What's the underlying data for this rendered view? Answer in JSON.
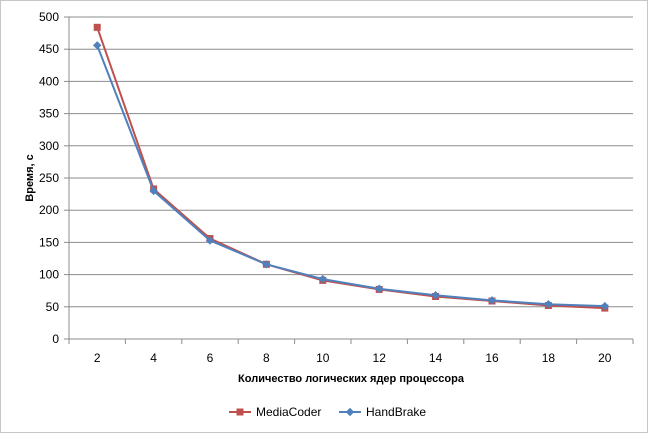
{
  "chart_data": {
    "type": "line",
    "xlabel": "Количество  логических ядер процессора",
    "ylabel": "Время,  с",
    "ylim": [
      0,
      500
    ],
    "ytick_step": 50,
    "grid": "horizontal",
    "legend_position": "bottom",
    "categories": [
      "2",
      "4",
      "6",
      "8",
      "10",
      "12",
      "14",
      "16",
      "18",
      "20"
    ],
    "series": [
      {
        "name": "MediaCoder",
        "color": "#c0504d",
        "marker": "square",
        "values": [
          484,
          233,
          156,
          116,
          91,
          77,
          66,
          59,
          52,
          48
        ]
      },
      {
        "name": "HandBrake",
        "color": "#4f81bd",
        "marker": "diamond",
        "values": [
          456,
          230,
          153,
          116,
          93,
          78,
          68,
          60,
          54,
          51
        ]
      }
    ]
  }
}
